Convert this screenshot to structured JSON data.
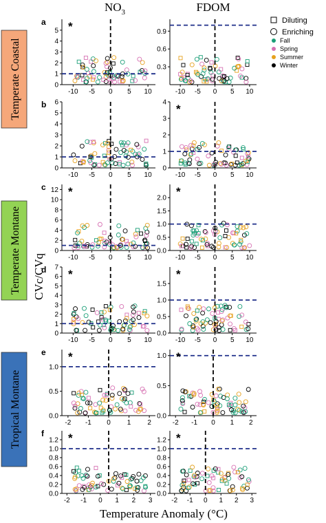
{
  "figure": {
    "col_titles": [
      {
        "main": "NO",
        "sub": "3"
      },
      {
        "main": "FDOM",
        "sub": ""
      }
    ],
    "ylabel": "CVc/CVq",
    "xlabel": "Temperature Anomaly (°C)",
    "regions": [
      {
        "label": "Temperate Coastal",
        "color": "#f5a77a"
      },
      {
        "label": "Temperate Montane",
        "color": "#93d354"
      },
      {
        "label": "Tropical Montane",
        "color": "#3a72b8"
      }
    ],
    "legend": {
      "shapes": [
        {
          "label": "Diluting",
          "icon": "square-icon"
        },
        {
          "label": "Enriching",
          "icon": "circle-icon"
        }
      ],
      "seasons": [
        {
          "label": "Fall",
          "color": "#1a9e77"
        },
        {
          "label": "Spring",
          "color": "#d670b2"
        },
        {
          "label": "Summer",
          "color": "#e6a11e"
        },
        {
          "label": "Winter",
          "color": "#000000"
        }
      ]
    }
  },
  "chart_data": [
    {
      "type": "scatter",
      "panel": "a",
      "column": "NO3",
      "asterisk": true,
      "xlim": [
        -13,
        12
      ],
      "ylim": [
        0,
        6
      ],
      "xticks": [
        -10,
        -5,
        0,
        5,
        10
      ],
      "yticks": [
        0,
        1,
        2,
        3,
        4,
        5
      ],
      "hline": 1,
      "vline": 0,
      "show_xticks": true
    },
    {
      "type": "scatter",
      "panel": "",
      "column": "FDOM",
      "asterisk": false,
      "xlim": [
        -13,
        12
      ],
      "ylim": [
        0,
        1.1
      ],
      "xticks": [
        -10,
        -5,
        0,
        5,
        10
      ],
      "yticks": [
        0.3,
        0.6,
        0.9
      ],
      "hline": 1,
      "vline": 0,
      "show_xticks": true
    },
    {
      "type": "scatter",
      "panel": "b",
      "column": "NO3",
      "asterisk": false,
      "xlim": [
        -13,
        12
      ],
      "ylim": [
        0,
        6
      ],
      "xticks": [
        -10,
        -5,
        0,
        5,
        10
      ],
      "yticks": [
        0,
        1,
        2,
        3,
        4,
        5,
        6
      ],
      "hline": 1,
      "vline": 0,
      "show_xticks": true
    },
    {
      "type": "scatter",
      "panel": "",
      "column": "FDOM",
      "asterisk": true,
      "xlim": [
        -13,
        12
      ],
      "ylim": [
        0,
        4
      ],
      "xticks": [
        -10,
        -5,
        0,
        5,
        10
      ],
      "yticks": [
        0.0,
        1.0,
        2.0,
        3.0,
        4.0
      ],
      "hline": 1,
      "vline": 0,
      "show_xticks": true
    },
    {
      "type": "scatter",
      "panel": "c",
      "column": "NO3",
      "asterisk": true,
      "xlim": [
        -13,
        12
      ],
      "ylim": [
        0,
        13
      ],
      "xticks": [
        -10,
        -5,
        0,
        5,
        10
      ],
      "yticks": [
        0,
        2,
        4,
        6,
        8,
        10,
        12
      ],
      "hline": 1,
      "vline": 0,
      "show_xticks": true
    },
    {
      "type": "scatter",
      "panel": "",
      "column": "FDOM",
      "asterisk": true,
      "xlim": [
        -13,
        12
      ],
      "ylim": [
        0,
        2.5
      ],
      "xticks": [
        -10,
        -5,
        0,
        5,
        10
      ],
      "yticks": [
        0.0,
        0.5,
        1.0,
        1.5,
        2.0
      ],
      "hline": 1,
      "vline": 0,
      "show_xticks": true
    },
    {
      "type": "scatter",
      "panel": "d",
      "column": "NO3",
      "asterisk": true,
      "xlim": [
        -13,
        12
      ],
      "ylim": [
        0,
        7
      ],
      "xticks": [
        -10,
        -5,
        0,
        5,
        10
      ],
      "yticks": [
        0,
        1,
        2,
        3,
        4,
        5,
        6,
        7
      ],
      "hline": 1,
      "vline": 0,
      "show_xticks": true
    },
    {
      "type": "scatter",
      "panel": "",
      "column": "FDOM",
      "asterisk": true,
      "xlim": [
        -13,
        12
      ],
      "ylim": [
        0,
        2
      ],
      "xticks": [
        -10,
        -5,
        0,
        5,
        10
      ],
      "yticks": [
        0.0,
        0.5,
        1.0,
        1.5
      ],
      "hline": 1,
      "vline": 0,
      "show_xticks": true
    },
    {
      "type": "scatter",
      "panel": "e",
      "column": "NO3",
      "asterisk": true,
      "xlim": [
        -2.3,
        2.3
      ],
      "ylim": [
        0,
        1.35
      ],
      "xticks": [
        -2,
        -1,
        0,
        1,
        2
      ],
      "yticks": [
        0.0,
        0.5,
        1.0
      ],
      "hline": 1,
      "vline": 0,
      "show_xticks": true
    },
    {
      "type": "scatter",
      "panel": "",
      "column": "FDOM",
      "asterisk": true,
      "xlim": [
        -2.3,
        2.3
      ],
      "ylim": [
        0,
        1.1
      ],
      "xticks": [
        -2,
        -1,
        0,
        1,
        2
      ],
      "yticks": [
        0.0,
        0.5,
        1.0
      ],
      "hline": 1,
      "vline": 0,
      "show_xticks": true
    },
    {
      "type": "scatter",
      "panel": "f",
      "column": "NO3",
      "asterisk": true,
      "xlim": [
        -2.3,
        3.3
      ],
      "ylim": [
        0,
        1.4
      ],
      "xticks": [
        -2,
        -1,
        0,
        1,
        2,
        3
      ],
      "yticks": [
        0.0,
        0.2,
        0.4,
        0.6,
        0.8,
        1.0,
        1.2
      ],
      "hline": 1,
      "vline": 0.5,
      "show_xticks": true
    },
    {
      "type": "scatter",
      "panel": "",
      "column": "FDOM",
      "asterisk": true,
      "xlim": [
        -2.3,
        3.3
      ],
      "ylim": [
        0,
        1.4
      ],
      "xticks": [
        -2,
        -1,
        0,
        1,
        2,
        3
      ],
      "yticks": [
        0.0,
        0.2,
        0.4,
        0.6,
        0.8,
        1.0,
        1.2
      ],
      "hline": 1,
      "vline": 0,
      "show_xticks": true
    }
  ]
}
